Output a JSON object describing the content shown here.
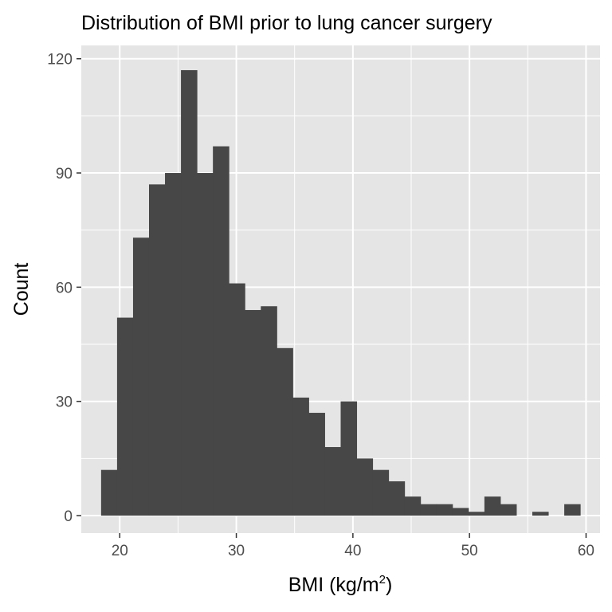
{
  "chart_data": {
    "type": "bar",
    "subtype": "histogram",
    "title": "Distribution of BMI prior to lung cancer surgery",
    "xlabel": "BMI (kg/m",
    "xlabel_superscript": "2",
    "xlabel_suffix": ")",
    "ylabel": "Count",
    "xlim": [
      16.7,
      61.2
    ],
    "ylim": [
      -4.6,
      123.5
    ],
    "xticks": [
      20,
      30,
      40,
      50,
      60
    ],
    "yticks": [
      0,
      30,
      60,
      90,
      120
    ],
    "xtick_labels": [
      "20",
      "30",
      "40",
      "50",
      "60"
    ],
    "ytick_labels": [
      "0",
      "30",
      "60",
      "90",
      "120"
    ],
    "bin_width": 1.37,
    "bin_starts": [
      18.4,
      19.77,
      21.14,
      22.51,
      23.88,
      25.25,
      26.62,
      27.99,
      29.36,
      30.73,
      32.1,
      33.47,
      34.84,
      36.21,
      37.58,
      38.95,
      40.32,
      41.69,
      43.06,
      44.43,
      45.8,
      47.17,
      48.54,
      49.91,
      51.28,
      52.65,
      54.02,
      55.39,
      56.76,
      58.13
    ],
    "counts": [
      12,
      52,
      73,
      87,
      90,
      117,
      90,
      97,
      61,
      54,
      55,
      44,
      31,
      27,
      18,
      30,
      15,
      12,
      9,
      5,
      3,
      3,
      2,
      1,
      5,
      3,
      0,
      1,
      0,
      3
    ],
    "bar_color": "#474747",
    "panel_background": "#e5e5e5",
    "grid_color": "#ffffff",
    "grid": true
  }
}
